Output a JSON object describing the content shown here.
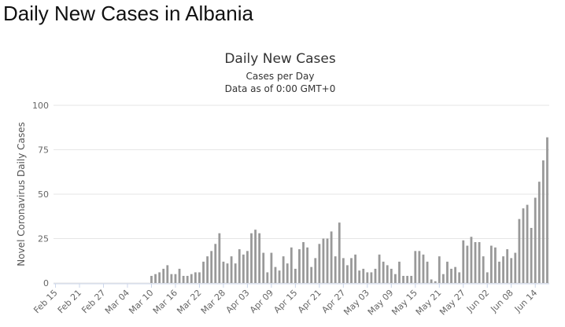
{
  "page": {
    "heading": "Daily New Cases in Albania"
  },
  "chart_data": {
    "type": "bar",
    "title": "Daily New Cases",
    "subtitle_lines": [
      "Cases per Day",
      "Data as of 0:00 GMT+0"
    ],
    "xlabel": "",
    "ylabel": "Novel Coronavirus Daily Cases",
    "ylim": [
      0,
      100
    ],
    "yticks": [
      0,
      25,
      50,
      75,
      100
    ],
    "grid": true,
    "legend": "none",
    "bar_color": "#999999",
    "grid_color": "#e6e6e6",
    "start_date": "2020-02-15",
    "x_tick_labels": [
      "Feb 15",
      "Feb 21",
      "Feb 27",
      "Mar 04",
      "Mar 10",
      "Mar 16",
      "Mar 22",
      "Mar 28",
      "Apr 03",
      "Apr 09",
      "Apr 15",
      "Apr 21",
      "Apr 27",
      "May 03",
      "May 09",
      "May 15",
      "May 21",
      "May 27",
      "Jun 02",
      "Jun 08",
      "Jun 14"
    ],
    "values": [
      0,
      0,
      0,
      0,
      0,
      0,
      0,
      0,
      0,
      0,
      0,
      0,
      0,
      0,
      0,
      0,
      0,
      0,
      0,
      0,
      0,
      0,
      0,
      0,
      4,
      5,
      6,
      8,
      10,
      5,
      5,
      8,
      4,
      4,
      5,
      6,
      6,
      12,
      15,
      18,
      22,
      28,
      12,
      11,
      15,
      11,
      19,
      16,
      18,
      28,
      30,
      28,
      17,
      6,
      17,
      9,
      7,
      15,
      11,
      20,
      8,
      19,
      23,
      20,
      9,
      14,
      22,
      25,
      25,
      29,
      15,
      34,
      14,
      10,
      14,
      16,
      7,
      8,
      6,
      6,
      8,
      16,
      12,
      10,
      8,
      5,
      12,
      4,
      4,
      4,
      18,
      18,
      16,
      12,
      2,
      1,
      15,
      5,
      12,
      8,
      9,
      6,
      24,
      21,
      26,
      23,
      23,
      15,
      6,
      21,
      20,
      12,
      15,
      19,
      14,
      17,
      36,
      42,
      44,
      31,
      48,
      57,
      69,
      82
    ]
  }
}
